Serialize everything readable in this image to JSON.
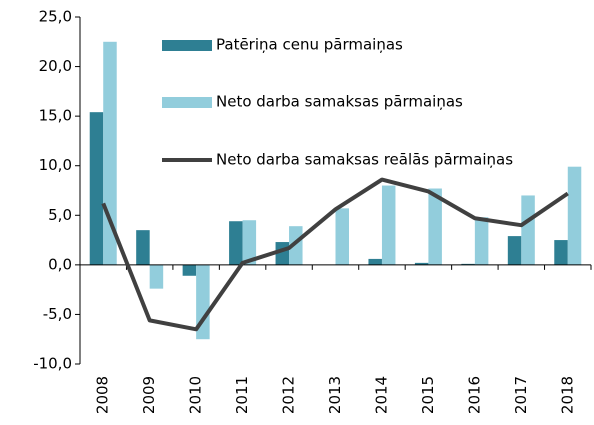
{
  "chart_data": {
    "type": "bar_line",
    "categories": [
      "2008",
      "2009",
      "2010",
      "2011",
      "2012",
      "2013",
      "2014",
      "2015",
      "2016",
      "2017",
      "2018"
    ],
    "series": [
      {
        "name": "Patēriņa cenu pārmaiņas",
        "type": "bar",
        "color": "#2e7f93",
        "values": [
          15.4,
          3.5,
          -1.1,
          4.4,
          2.3,
          0.0,
          0.6,
          0.2,
          0.1,
          2.9,
          2.5
        ]
      },
      {
        "name": "Neto darba samaksas pārmaiņas",
        "type": "bar",
        "color": "#92cddc",
        "values": [
          22.5,
          -2.4,
          -7.5,
          4.5,
          3.9,
          5.7,
          8.0,
          7.7,
          4.8,
          7.0,
          9.9
        ]
      },
      {
        "name": "Neto darba samaksas reālās pārmaiņas",
        "type": "line",
        "color": "#404040",
        "values": [
          6.2,
          -5.6,
          -6.5,
          0.2,
          1.7,
          5.6,
          8.6,
          7.4,
          4.7,
          4.0,
          7.2
        ]
      }
    ],
    "ylim": [
      -10,
      25
    ],
    "yticks": [
      {
        "value": -10,
        "label": "-10,0"
      },
      {
        "value": -5,
        "label": "-5,0"
      },
      {
        "value": 0,
        "label": "0,0"
      },
      {
        "value": 5,
        "label": "5,0"
      },
      {
        "value": 10,
        "label": "10,0"
      },
      {
        "value": 15,
        "label": "15,0"
      },
      {
        "value": 20,
        "label": "20,0"
      },
      {
        "value": 25,
        "label": "25,0"
      }
    ],
    "grid": false
  }
}
